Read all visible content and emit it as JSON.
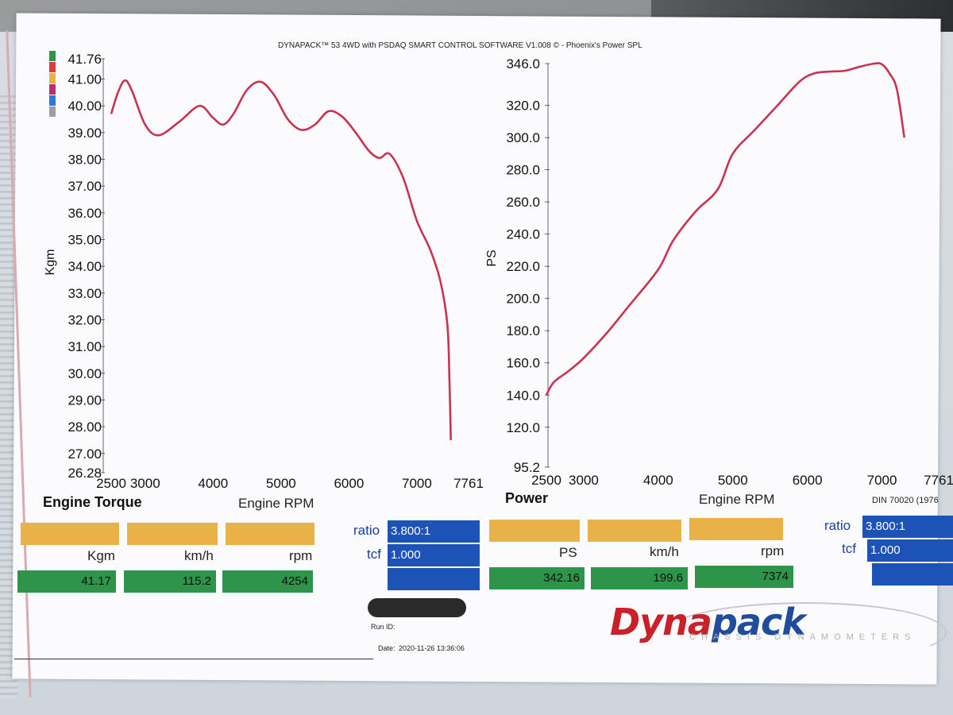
{
  "header_title": "DYNAPACK™ 53 4WD with PSDAQ SMART CONTROL SOFTWARE V1.008 © - Phoenix's Power SPL",
  "legend_colors": [
    "#2e9449",
    "#e03a3e",
    "#e8b248",
    "#b8306e",
    "#2a7ad6",
    "#9aa0a6"
  ],
  "chart_data": [
    {
      "type": "line",
      "title": "Engine Torque",
      "xlabel": "Engine RPM",
      "ylabel": "Kgm",
      "xlim": [
        2500,
        7761
      ],
      "ylim": [
        26.28,
        41.76
      ],
      "x_ticks": [
        "2500",
        "3000",
        "4000",
        "5000",
        "6000",
        "7000",
        "7761"
      ],
      "x_tick_values": [
        2500,
        3000,
        4000,
        5000,
        6000,
        7000,
        7761
      ],
      "y_ticks": [
        "26.28",
        "27.00",
        "28.00",
        "29.00",
        "30.00",
        "31.00",
        "32.00",
        "33.00",
        "34.00",
        "35.00",
        "36.00",
        "37.00",
        "38.00",
        "39.00",
        "40.00",
        "41.00",
        "41.76"
      ],
      "y_tick_values": [
        26.28,
        27,
        28,
        29,
        30,
        31,
        32,
        33,
        34,
        35,
        36,
        37,
        38,
        39,
        40,
        41,
        41.76
      ],
      "series": [
        {
          "color": "#c8334f",
          "x": [
            2500,
            2600,
            2700,
            2800,
            3000,
            3200,
            3500,
            3800,
            4000,
            4150,
            4300,
            4500,
            4700,
            4900,
            5100,
            5300,
            5500,
            5700,
            5900,
            6100,
            6300,
            6450,
            6600,
            6800,
            7000,
            7200,
            7350,
            7450,
            7480,
            7500
          ],
          "y": [
            39.7,
            40.5,
            40.95,
            40.6,
            39.3,
            38.9,
            39.4,
            40.0,
            39.55,
            39.3,
            39.7,
            40.6,
            40.9,
            40.4,
            39.5,
            39.1,
            39.3,
            39.8,
            39.6,
            39.0,
            38.3,
            38.05,
            38.2,
            37.3,
            35.7,
            34.6,
            33.4,
            31.8,
            29.7,
            27.5
          ]
        }
      ]
    },
    {
      "type": "line",
      "title": "Power",
      "xlabel": "Engine RPM",
      "ylabel": "PS",
      "xlim": [
        2500,
        7761
      ],
      "ylim": [
        95.2,
        346.0
      ],
      "x_ticks": [
        "2500",
        "3000",
        "4000",
        "5000",
        "6000",
        "7000",
        "7761"
      ],
      "x_tick_values": [
        2500,
        3000,
        4000,
        5000,
        6000,
        7000,
        7761
      ],
      "y_ticks": [
        "95.2",
        "120.0",
        "140.0",
        "160.0",
        "180.0",
        "200.0",
        "220.0",
        "240.0",
        "260.0",
        "280.0",
        "300.0",
        "320.0",
        "346.0"
      ],
      "y_tick_values": [
        95.2,
        120,
        140,
        160,
        180,
        200,
        220,
        240,
        260,
        280,
        300,
        320,
        346
      ],
      "series": [
        {
          "color": "#c8334f",
          "x": [
            2500,
            2600,
            2800,
            3000,
            3300,
            3600,
            4000,
            4200,
            4500,
            4800,
            5000,
            5300,
            5600,
            5900,
            6100,
            6300,
            6500,
            6700,
            6900,
            7000,
            7100,
            7200,
            7300
          ],
          "y": [
            140.0,
            148.0,
            155.0,
            163.0,
            178.0,
            195.0,
            218.0,
            236.0,
            254.0,
            268.0,
            290.0,
            305.0,
            320.0,
            335.0,
            340.0,
            341.0,
            341.5,
            344.0,
            346.0,
            345.5,
            340.0,
            330.0,
            300.0
          ]
        }
      ]
    }
  ],
  "left_panel": {
    "title": "Engine Torque",
    "rpm_label": "Engine RPM",
    "unit_labels": [
      "Kgm",
      "km/h",
      "rpm"
    ],
    "values": [
      "41.17",
      "115.2",
      "4254"
    ],
    "ratio_label": "ratio",
    "ratio_value": "3.800:1",
    "tcf_label": "tcf",
    "tcf_value": "1.000"
  },
  "right_panel": {
    "title": "Power",
    "rpm_label": "Engine RPM",
    "unit_labels": [
      "PS",
      "km/h",
      "rpm"
    ],
    "values": [
      "342.16",
      "199.6",
      "7374"
    ],
    "ratio_label": "ratio",
    "ratio_value": "3.800:1",
    "tcf_label": "tcf",
    "tcf_value": "1.000",
    "standard": "DIN 70020 (1976"
  },
  "footer": {
    "run_id_label": "Run ID:",
    "date_label": "Date:",
    "date_value": "2020-11-26 13:36:06",
    "logo_main": "Dyna",
    "logo_accent": "pack",
    "logo_sub": "CHASSIS DYNAMOMETERS"
  }
}
